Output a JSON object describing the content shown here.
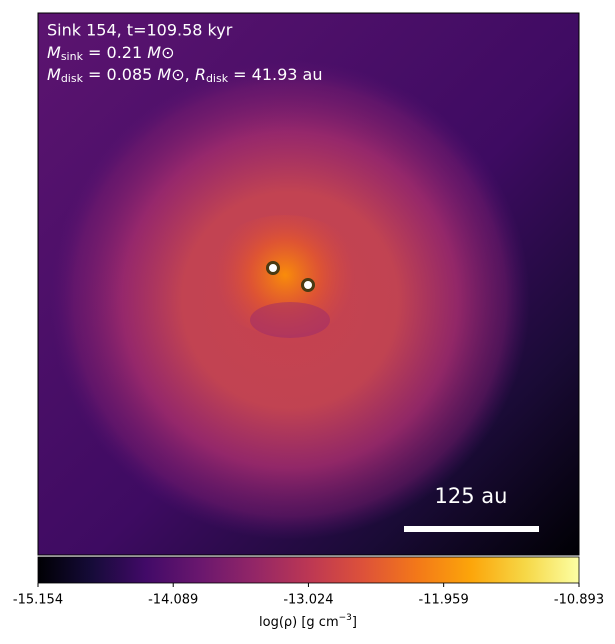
{
  "panel": {
    "lines": [
      {
        "text": "Sink 154, t=109.58 kyr"
      },
      {
        "parts": [
          "M",
          "sink",
          " = 0.21 ",
          "M",
          "⊙"
        ]
      },
      {
        "parts": [
          "M",
          "disk",
          " = 0.085 ",
          "M",
          "⊙",
          ", ",
          "R",
          "disk",
          " = 41.93 au"
        ]
      }
    ],
    "scale_bar": "125 au"
  },
  "colorbar": {
    "lim": [
      -15.154,
      -10.893
    ],
    "ticks": [
      -15.154,
      -14.089,
      -13.024,
      -11.959,
      -10.893
    ],
    "label": [
      "log(ρ) [g cm",
      "−3",
      "]"
    ]
  }
}
